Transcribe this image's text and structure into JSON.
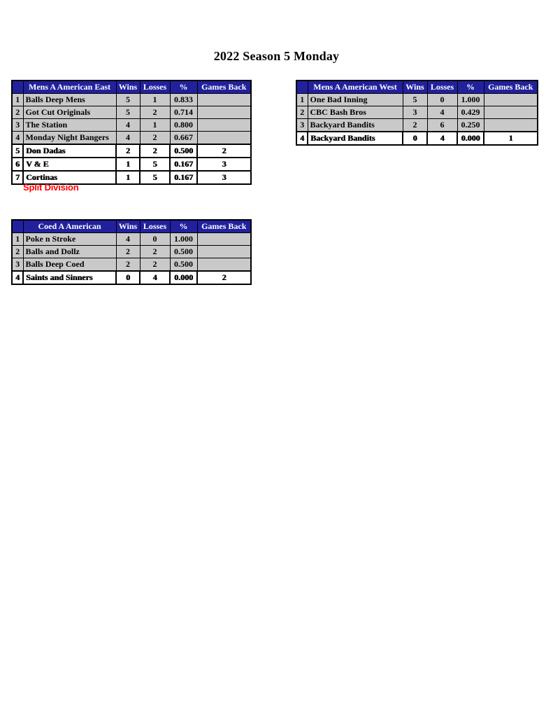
{
  "page": {
    "title": "2022 Season 5 Monday"
  },
  "columns": {
    "wins": "Wins",
    "losses": "Losses",
    "pct": "%",
    "games_back": "Games Back"
  },
  "colors": {
    "header_bg": "#21219E",
    "header_text": "#FFFFFF",
    "row_gray": "#C9C9C9",
    "note_red": "#FF0000",
    "border": "#000000"
  },
  "note": {
    "text": "Split Division"
  },
  "tables": [
    {
      "name": "Mens A American East",
      "rows": [
        {
          "rank": "1",
          "team": "Balls Deep Mens",
          "wins": "5",
          "losses": "1",
          "pct": "0.833",
          "gb": ""
        },
        {
          "rank": "2",
          "team": "Got Cut Originals",
          "wins": "5",
          "losses": "2",
          "pct": "0.714",
          "gb": ""
        },
        {
          "rank": "3",
          "team": "The Station",
          "wins": "4",
          "losses": "1",
          "pct": "0.800",
          "gb": ""
        },
        {
          "rank": "4",
          "team": "Monday Night Bangers",
          "wins": "4",
          "losses": "2",
          "pct": "0.667",
          "gb": ""
        },
        {
          "rank": "5",
          "team": "Don Dadas",
          "wins": "2",
          "losses": "2",
          "pct": "0.500",
          "gb": "2"
        },
        {
          "rank": "6",
          "team": "V & E",
          "wins": "1",
          "losses": "5",
          "pct": "0.167",
          "gb": "3"
        },
        {
          "rank": "7",
          "team": "Cortinas",
          "wins": "1",
          "losses": "5",
          "pct": "0.167",
          "gb": "3"
        }
      ]
    },
    {
      "name": "Mens A American West",
      "rows": [
        {
          "rank": "1",
          "team": "One Bad Inning",
          "wins": "5",
          "losses": "0",
          "pct": "1.000",
          "gb": ""
        },
        {
          "rank": "2",
          "team": "CBC Bash Bros",
          "wins": "3",
          "losses": "4",
          "pct": "0.429",
          "gb": ""
        },
        {
          "rank": "3",
          "team": "Backyard Bandits",
          "wins": "2",
          "losses": "6",
          "pct": "0.250",
          "gb": ""
        },
        {
          "rank": "4",
          "team": "Backyard Bandits",
          "wins": "0",
          "losses": "4",
          "pct": "0.000",
          "gb": "1"
        }
      ]
    },
    {
      "name": "Coed A American",
      "rows": [
        {
          "rank": "1",
          "team": "Poke n Stroke",
          "wins": "4",
          "losses": "0",
          "pct": "1.000",
          "gb": ""
        },
        {
          "rank": "2",
          "team": "Balls and Dollz",
          "wins": "2",
          "losses": "2",
          "pct": "0.500",
          "gb": ""
        },
        {
          "rank": "3",
          "team": "Balls Deep Coed",
          "wins": "2",
          "losses": "2",
          "pct": "0.500",
          "gb": ""
        },
        {
          "rank": "4",
          "team": "Saints and Sinners",
          "wins": "0",
          "losses": "4",
          "pct": "0.000",
          "gb": "2"
        }
      ]
    }
  ]
}
